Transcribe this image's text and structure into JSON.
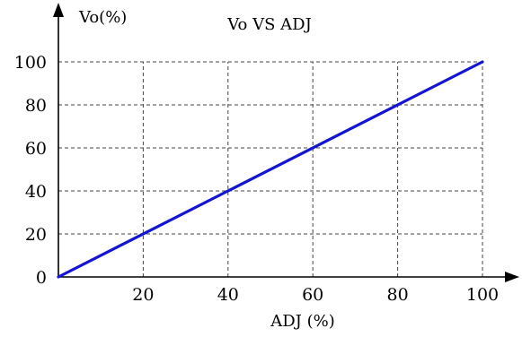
{
  "chart_data": {
    "type": "line",
    "title": "Vo VS ADJ",
    "xlabel": "ADJ (%)",
    "ylabel": "Vo(%)",
    "xlim": [
      0,
      100
    ],
    "ylim": [
      0,
      100
    ],
    "xticks": [
      20,
      40,
      60,
      80,
      100
    ],
    "yticks": [
      0,
      20,
      40,
      60,
      80,
      100
    ],
    "grid": true,
    "series": [
      {
        "x": [
          0,
          100
        ],
        "y": [
          0,
          100
        ],
        "color": "#1414d2"
      }
    ]
  }
}
